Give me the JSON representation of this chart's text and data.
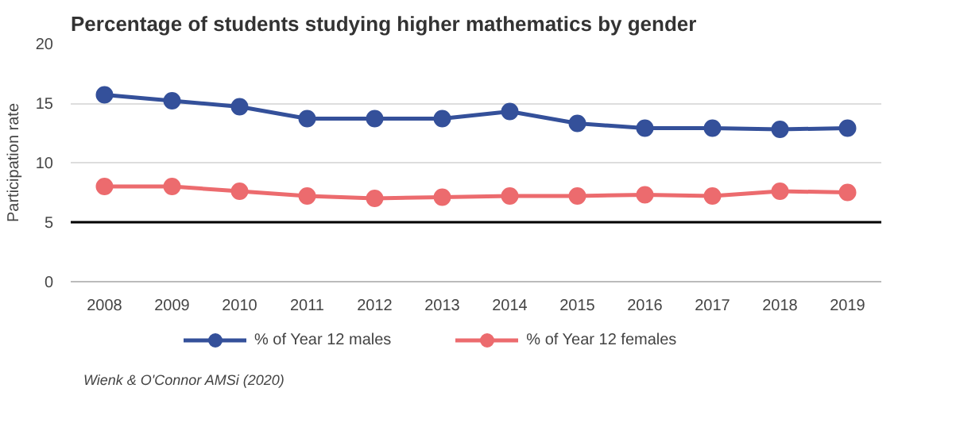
{
  "chart_data": {
    "type": "line",
    "title": "Percentage of students studying higher mathematics by gender",
    "ylabel": "Participation rate",
    "categories": [
      "2008",
      "2009",
      "2010",
      "2011",
      "2012",
      "2013",
      "2014",
      "2015",
      "2016",
      "2017",
      "2018",
      "2019"
    ],
    "series": [
      {
        "name": "% of Year 12 males",
        "color": "#34509a",
        "values": [
          15.7,
          15.2,
          14.7,
          13.7,
          13.7,
          13.7,
          14.3,
          13.3,
          12.9,
          12.9,
          12.8,
          12.9
        ]
      },
      {
        "name": "% of Year 12 females",
        "color": "#ec6b6e",
        "values": [
          8.0,
          8.0,
          7.6,
          7.2,
          7.0,
          7.1,
          7.2,
          7.2,
          7.3,
          7.2,
          7.6,
          7.5
        ]
      }
    ],
    "ylim": [
      0,
      20
    ],
    "yticks": [
      0,
      5,
      10,
      15,
      20
    ],
    "grid": "y",
    "legend": "bottom",
    "marker": "circle",
    "line_style": "solid",
    "ref_lines": [
      {
        "axis": "y",
        "value": 5,
        "color": "#000000"
      }
    ],
    "annotations": [
      "Wienk & O'Connor AMSi (2020)"
    ]
  }
}
